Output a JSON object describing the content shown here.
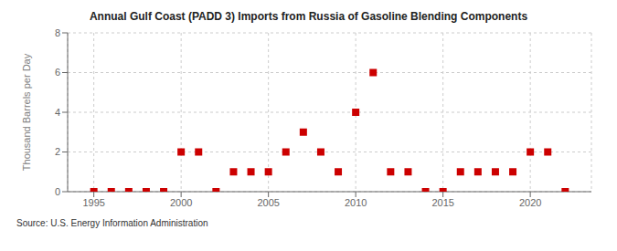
{
  "chart_data": {
    "type": "scatter",
    "title": "Annual Gulf Coast (PADD 3) Imports from Russia of Gasoline Blending Components",
    "y_label": "Thousand Barrels per Day",
    "annotation": "Source: U.S. Energy Information Administration",
    "x": [
      1995,
      1996,
      1997,
      1998,
      1999,
      2000,
      2001,
      2002,
      2003,
      2004,
      2005,
      2006,
      2007,
      2008,
      2009,
      2010,
      2011,
      2012,
      2013,
      2014,
      2015,
      2016,
      2017,
      2018,
      2019,
      2020,
      2021,
      2022
    ],
    "values": [
      0,
      0,
      0,
      0,
      0,
      2,
      2,
      0,
      1,
      1,
      1,
      2,
      3,
      2,
      1,
      4,
      6,
      1,
      1,
      0,
      0,
      1,
      1,
      1,
      1,
      2,
      2,
      0
    ],
    "color": "#cc0000",
    "marker": "square",
    "xlim": [
      1993.5,
      2023.5
    ],
    "xticks": [
      1995,
      2000,
      2005,
      2010,
      2015,
      2020
    ],
    "ylim": [
      0,
      8
    ],
    "yticks": [
      0,
      2,
      4,
      6,
      8
    ],
    "grid": true
  }
}
